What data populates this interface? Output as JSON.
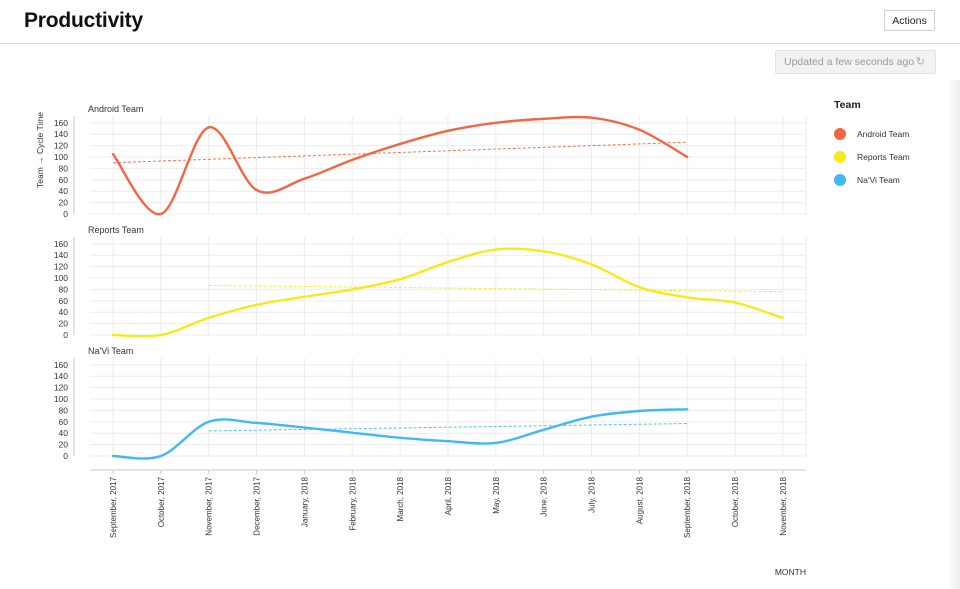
{
  "header": {
    "title": "Productivity",
    "actions_label": "Actions"
  },
  "status": {
    "updated_text": "Updated a few seconds ago",
    "refresh_icon": "refresh-icon"
  },
  "legend": {
    "title": "Team",
    "items": [
      {
        "label": "Android Team",
        "color": "#f26644"
      },
      {
        "label": "Reports Team",
        "color": "#f5ea1c"
      },
      {
        "label": "Na'Vi Team",
        "color": "#41b9f2"
      }
    ]
  },
  "chart_data": {
    "type": "line",
    "ylabel": "Team → Cycle Time",
    "xlabel": "MONTH",
    "y_ticks": [
      0,
      20,
      40,
      60,
      80,
      100,
      120,
      140,
      160
    ],
    "ylim": [
      0,
      165
    ],
    "grid": true,
    "legend_position": "right",
    "categories": [
      "September, 2017",
      "October, 2017",
      "November, 2017",
      "December, 2017",
      "January, 2018",
      "February, 2018",
      "March, 2018",
      "April, 2018",
      "May, 2018",
      "June, 2018",
      "July, 2018",
      "August, 2018",
      "September, 2018",
      "October, 2018",
      "November, 2018"
    ],
    "series": [
      {
        "name": "Android Team",
        "color": "#f26644",
        "values": [
          105,
          0,
          152,
          42,
          62,
          95,
          123,
          146,
          160,
          167,
          169,
          148,
          100,
          null,
          null
        ],
        "trend": [
          90,
          126
        ]
      },
      {
        "name": "Reports Team",
        "color": "#f5ea1c",
        "values": [
          0,
          0,
          30,
          53,
          67,
          80,
          98,
          128,
          150,
          147,
          124,
          84,
          66,
          57,
          30
        ],
        "trend": [
          87,
          76
        ]
      },
      {
        "name": "Na'Vi Team",
        "color": "#41b9f2",
        "values": [
          0,
          0,
          60,
          58,
          50,
          41,
          32,
          26,
          23,
          46,
          69,
          79,
          82,
          null,
          null
        ],
        "trend": [
          44,
          57
        ]
      }
    ]
  }
}
